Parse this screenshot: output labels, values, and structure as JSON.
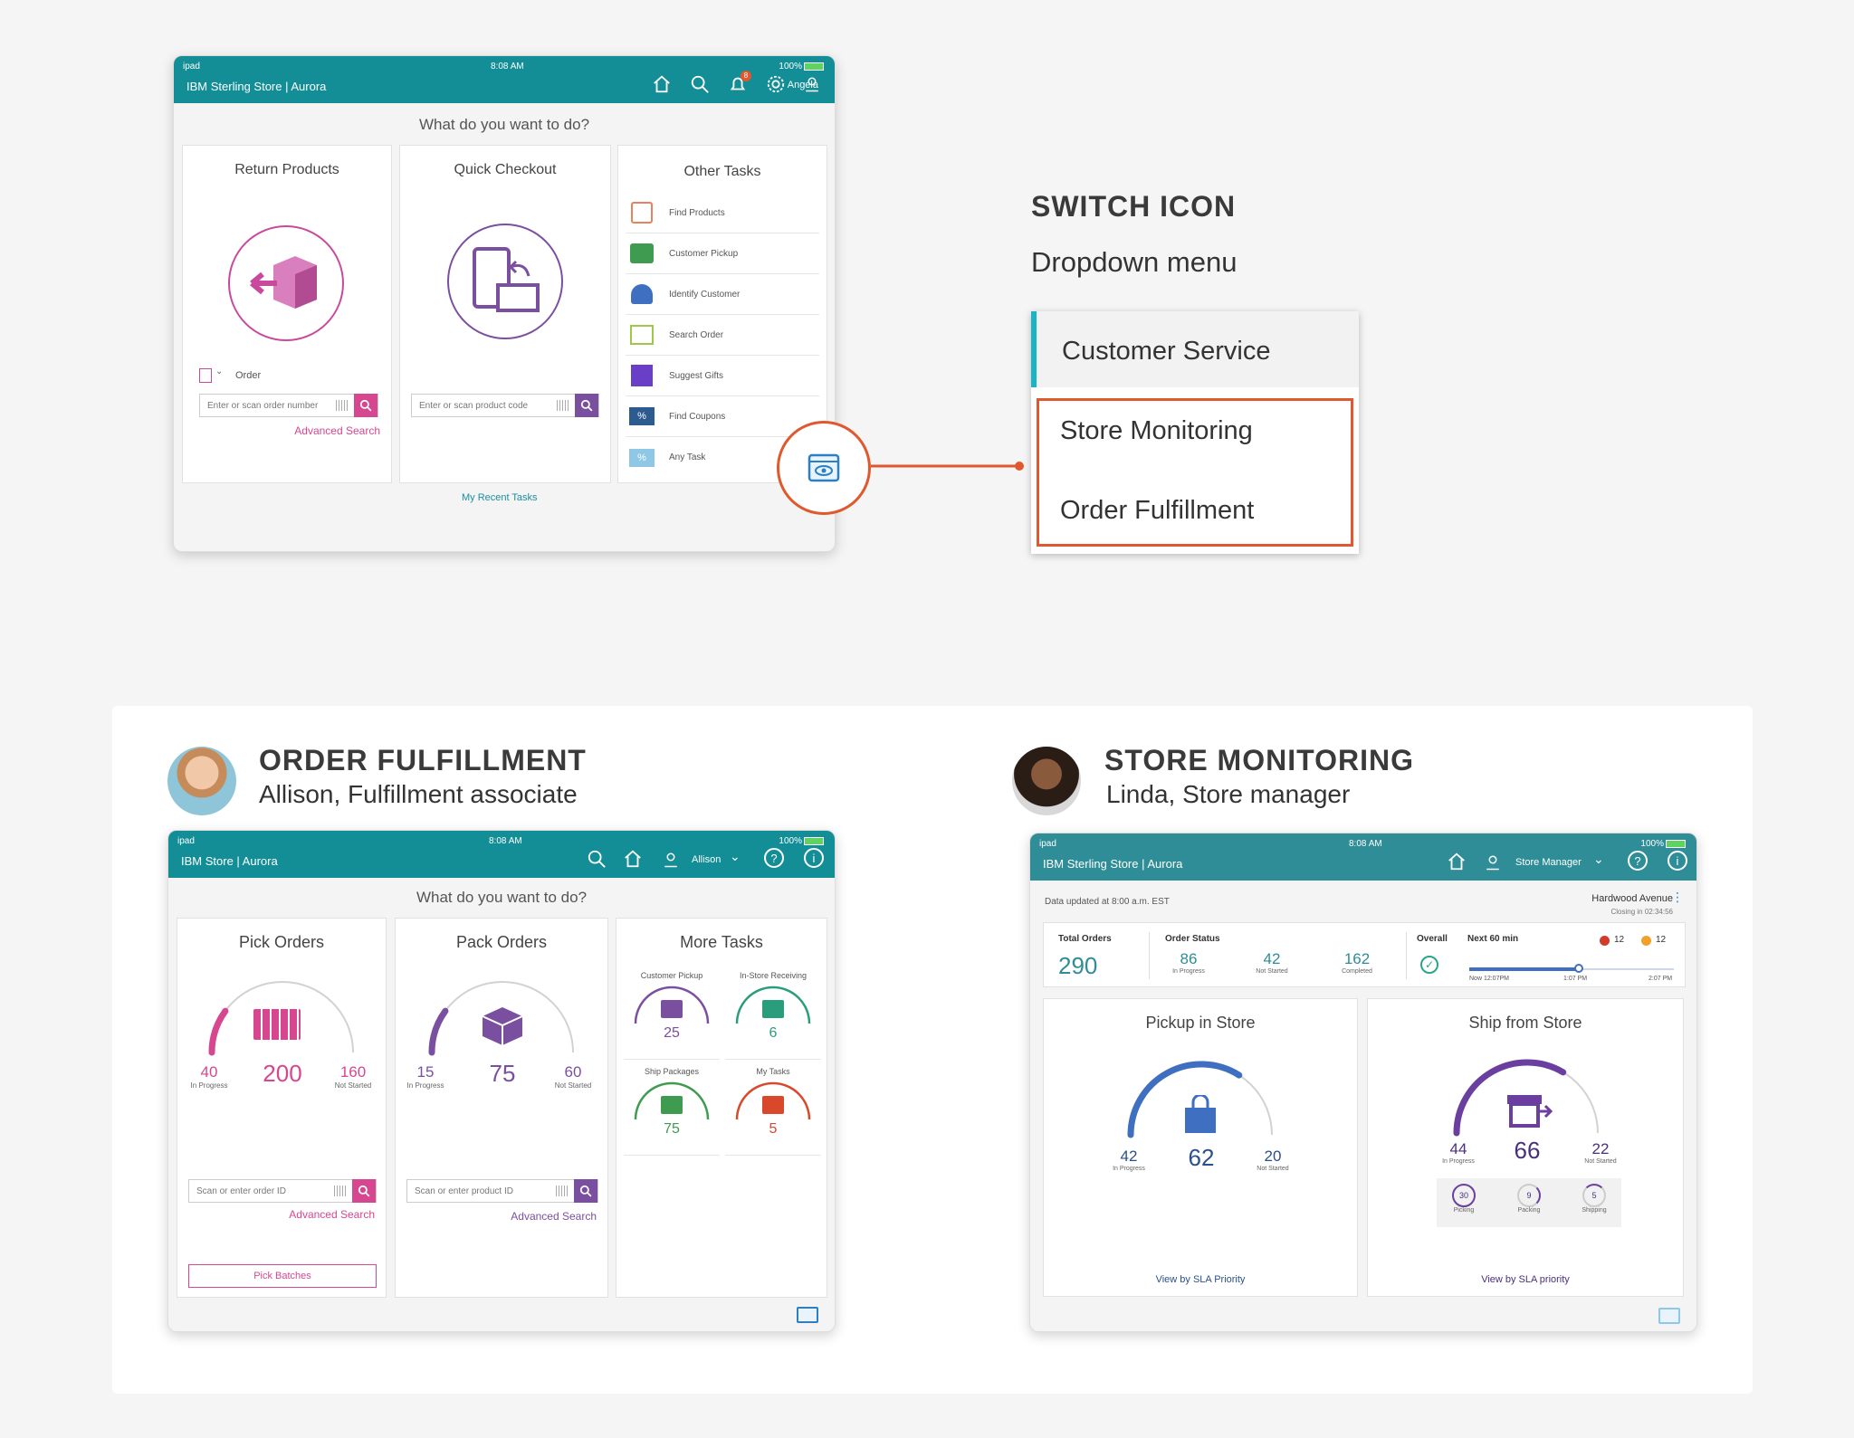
{
  "switch_icon": {
    "heading": "SWITCH ICON",
    "subheading": "Dropdown menu",
    "menu": [
      "Customer Service",
      "Store Monitoring",
      "Order Fulfillment"
    ]
  },
  "tablet1": {
    "status": {
      "device": "ipad",
      "time": "8:08 AM",
      "battery": "100%"
    },
    "title": "IBM Sterling Store | Aurora",
    "badge": "8",
    "user": "Angela",
    "prompt": "What do you want to do?",
    "return": {
      "title": "Return Products",
      "order_label": "Order",
      "placeholder": "Enter or scan order number",
      "advanced": "Advanced Search"
    },
    "checkout": {
      "title": "Quick Checkout",
      "placeholder": "Enter or scan product code"
    },
    "other": {
      "title": "Other Tasks",
      "items": [
        "Find Products",
        "Customer Pickup",
        "Identify Customer",
        "Search Order",
        "Suggest Gifts",
        "Find Coupons",
        "Any Task"
      ]
    },
    "recent": "My Recent Tasks"
  },
  "fulfillment": {
    "heading": "ORDER FULFILLMENT",
    "sub": "Allison, Fulfillment associate",
    "status": {
      "device": "ipad",
      "time": "8:08 AM",
      "battery": "100%"
    },
    "title": "IBM Store | Aurora",
    "user": "Allison",
    "prompt": "What do you want to do?",
    "pick": {
      "title": "Pick Orders",
      "left": "40",
      "left_label": "In Progress",
      "center": "200",
      "right": "160",
      "right_label": "Not Started",
      "placeholder": "Scan or enter order ID",
      "advanced": "Advanced Search",
      "button": "Pick Batches",
      "progress": 0.2
    },
    "pack": {
      "title": "Pack Orders",
      "left": "15",
      "left_label": "In Progress",
      "center": "75",
      "right": "60",
      "right_label": "Not Started",
      "placeholder": "Scan or enter product ID",
      "advanced": "Advanced Search",
      "progress": 0.2
    },
    "more": {
      "title": "More Tasks",
      "items": [
        {
          "label": "Customer Pickup",
          "value": "25",
          "color": "#7b4fa0"
        },
        {
          "label": "In-Store Receiving",
          "value": "6",
          "color": "#2a9d7c"
        },
        {
          "label": "Ship Packages",
          "value": "75",
          "color": "#3e9b4f"
        },
        {
          "label": "My Tasks",
          "value": "5",
          "color": "#d9482b"
        }
      ]
    }
  },
  "monitoring": {
    "heading": "STORE MONITORING",
    "sub": "Linda, Store manager",
    "status": {
      "device": "ipad",
      "time": "8:08 AM",
      "battery": "100%"
    },
    "title": "IBM Sterling Store | Aurora",
    "user": "Store Manager",
    "updated": "Data updated at 8:00 a.m. EST",
    "store": "Hardwood Avenue",
    "closing": "Closing in 02:34:56",
    "total_label": "Total Orders",
    "total": "290",
    "status_label": "Order Status",
    "in_progress": "86",
    "in_progress_label": "In Progress",
    "not_started": "42",
    "not_started_label": "Not Started",
    "completed": "162",
    "completed_label": "Completed",
    "overall": "Overall",
    "next": "Next 60 min",
    "red_count": "12",
    "orange_count": "12",
    "timeline": [
      "Now 12:07PM",
      "1:07 PM",
      "2:07 PM"
    ],
    "pickup": {
      "title": "Pickup in Store",
      "left": "42",
      "left_label": "In Progress",
      "center": "62",
      "right": "20",
      "right_label": "Not Started",
      "link": "View by SLA Priority",
      "progress": 0.68
    },
    "ship": {
      "title": "Ship from Store",
      "left": "44",
      "left_label": "In Progress",
      "center": "66",
      "right": "22",
      "right_label": "Not Started",
      "link": "View by SLA priority",
      "progress": 0.67,
      "breakdown": [
        {
          "value": "30",
          "label": "Picking"
        },
        {
          "value": "9",
          "label": "Packing"
        },
        {
          "value": "5",
          "label": "Shipping"
        }
      ]
    }
  }
}
